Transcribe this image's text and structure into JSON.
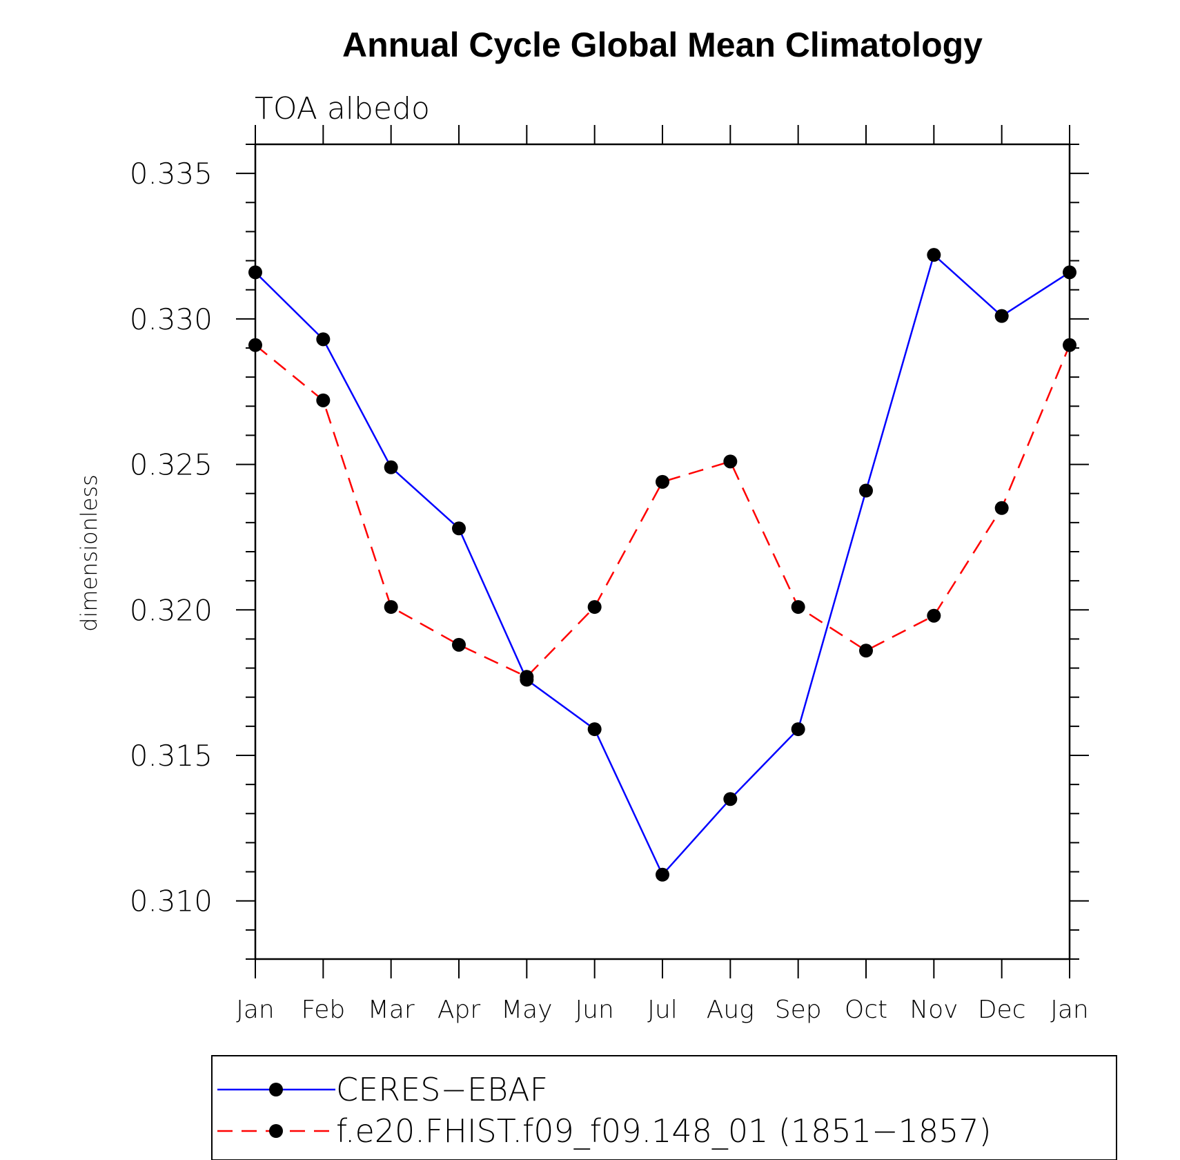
{
  "chart_data": {
    "type": "line",
    "title": "Annual Cycle Global Mean Climatology",
    "subtitle": "TOA albedo",
    "ylabel": "dimensionless",
    "xlabel": "",
    "categories": [
      "Jan",
      "Feb",
      "Mar",
      "Apr",
      "May",
      "Jun",
      "Jul",
      "Aug",
      "Sep",
      "Oct",
      "Nov",
      "Dec",
      "Jan"
    ],
    "ylim": [
      0.308,
      0.336
    ],
    "yticks": [
      "0.310",
      "0.315",
      "0.320",
      "0.325",
      "0.330",
      "0.335"
    ],
    "ytick_values": [
      0.31,
      0.315,
      0.32,
      0.325,
      0.33,
      0.335
    ],
    "grid": false,
    "legend_position": "bottom",
    "series": [
      {
        "name": "CERES−EBAF",
        "color": "#0000ff",
        "line_style": "solid",
        "marker": "filled-circle",
        "values": [
          0.3316,
          0.3293,
          0.3249,
          0.3228,
          0.3176,
          0.3159,
          0.3109,
          0.3135,
          0.3159,
          0.3241,
          0.3322,
          0.3301,
          0.3316
        ]
      },
      {
        "name": "f.e20.FHIST.f09_f09.148_01 (1851−1857)",
        "color": "#ff0000",
        "line_style": "dashed",
        "marker": "filled-circle",
        "values": [
          0.3291,
          0.3272,
          0.3201,
          0.3188,
          0.3177,
          0.3201,
          0.3244,
          0.3251,
          0.3201,
          0.3186,
          0.3198,
          0.3235,
          0.3291
        ]
      }
    ]
  }
}
